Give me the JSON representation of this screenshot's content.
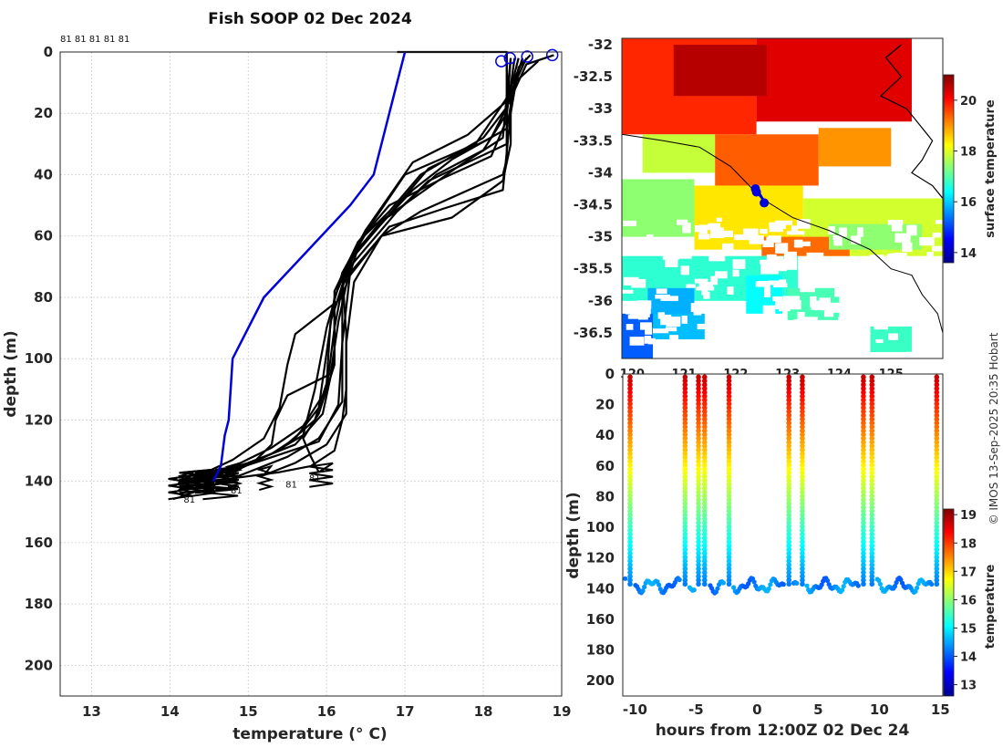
{
  "colors": {
    "profile_line": "#000000",
    "highlight_line": "#0000dd",
    "marker": "#0000dd",
    "coast": "#000000",
    "jet": [
      "#00008f",
      "#0000ff",
      "#007fff",
      "#00ffff",
      "#7fff7f",
      "#ffff00",
      "#ff7f00",
      "#ff0000",
      "#7f0000"
    ]
  },
  "chart_data": [
    {
      "id": "profiles",
      "type": "line",
      "title": "Fish SOOP 02 Dec 2024",
      "xlabel": "temperature (° C)",
      "ylabel": "depth (m)",
      "xlim": [
        12.6,
        19.0
      ],
      "ylim": [
        210,
        0
      ],
      "xticks": [
        13,
        14,
        15,
        16,
        17,
        18,
        19
      ],
      "yticks": [
        0,
        20,
        40,
        60,
        80,
        100,
        120,
        140,
        160,
        180,
        200
      ],
      "grid": true,
      "top_labels": "81 81 81 81 81",
      "bottom_labels": [
        {
          "text": "81",
          "t": 14.25,
          "d": 147
        },
        {
          "text": "81",
          "t": 14.85,
          "d": 144
        },
        {
          "text": "81",
          "t": 15.55,
          "d": 142
        },
        {
          "text": "81",
          "t": 15.85,
          "d": 140
        }
      ],
      "surface_markers": [
        {
          "t": 18.23,
          "d": 3
        },
        {
          "t": 18.34,
          "d": 2
        },
        {
          "t": 18.56,
          "d": 1.5
        },
        {
          "t": 18.88,
          "d": 1
        }
      ],
      "highlight_series": {
        "name": "blue",
        "points": [
          [
            17.0,
            0
          ],
          [
            16.9,
            10
          ],
          [
            16.6,
            40
          ],
          [
            16.3,
            50
          ],
          [
            15.2,
            80
          ],
          [
            14.8,
            100
          ],
          [
            14.75,
            120
          ],
          [
            14.7,
            125
          ],
          [
            14.65,
            135
          ],
          [
            14.55,
            140
          ]
        ]
      },
      "series": [
        {
          "name": "p1",
          "points": [
            [
              16.9,
              0
            ],
            [
              18.3,
              0
            ],
            [
              18.3,
              20
            ],
            [
              18.3,
              35
            ],
            [
              18.25,
              40
            ],
            [
              17.2,
              52
            ],
            [
              16.7,
              60
            ],
            [
              16.35,
              75
            ],
            [
              16.25,
              95
            ],
            [
              16.25,
              110
            ],
            [
              16.2,
              120
            ],
            [
              16.1,
              130
            ],
            [
              15.8,
              135
            ],
            [
              15.4,
              137
            ],
            [
              14.8,
              139
            ],
            [
              14.1,
              141
            ]
          ]
        },
        {
          "name": "p2",
          "points": [
            [
              18.6,
              1
            ],
            [
              18.45,
              5
            ],
            [
              18.35,
              20
            ],
            [
              18.25,
              45
            ],
            [
              17.5,
              51
            ],
            [
              16.8,
              57
            ],
            [
              16.3,
              72
            ],
            [
              16.2,
              95
            ],
            [
              16.15,
              115
            ],
            [
              15.9,
              127
            ],
            [
              15.2,
              133
            ],
            [
              14.6,
              138
            ],
            [
              14.1,
              141
            ]
          ]
        },
        {
          "name": "p3",
          "points": [
            [
              18.9,
              1
            ],
            [
              18.55,
              4
            ],
            [
              18.3,
              18
            ],
            [
              18.0,
              28
            ],
            [
              17.2,
              40
            ],
            [
              16.8,
              52
            ],
            [
              16.4,
              62
            ],
            [
              16.1,
              78
            ],
            [
              16.1,
              100
            ],
            [
              15.95,
              118
            ],
            [
              15.6,
              128
            ],
            [
              15.0,
              134
            ],
            [
              14.3,
              139
            ]
          ]
        },
        {
          "name": "p4",
          "points": [
            [
              18.35,
              2
            ],
            [
              18.3,
              15
            ],
            [
              17.9,
              30
            ],
            [
              17.0,
              40
            ],
            [
              16.6,
              55
            ],
            [
              16.2,
              72
            ],
            [
              16.0,
              90
            ],
            [
              15.85,
              110
            ],
            [
              15.7,
              125
            ],
            [
              15.3,
              131
            ],
            [
              14.8,
              136
            ],
            [
              14.2,
              140
            ]
          ]
        },
        {
          "name": "p5",
          "points": [
            [
              18.5,
              2
            ],
            [
              18.3,
              18
            ],
            [
              18.1,
              28
            ],
            [
              17.3,
              38
            ],
            [
              16.9,
              50
            ],
            [
              16.3,
              68
            ],
            [
              16.05,
              88
            ],
            [
              16.0,
              108
            ],
            [
              15.85,
              120
            ],
            [
              15.4,
              130
            ],
            [
              14.9,
              135
            ],
            [
              14.4,
              140
            ]
          ]
        },
        {
          "name": "p6",
          "points": [
            [
              18.45,
              2
            ],
            [
              18.35,
              12
            ],
            [
              18.35,
              30
            ],
            [
              18.25,
              42
            ],
            [
              17.6,
              54
            ],
            [
              16.7,
              60
            ],
            [
              16.2,
              76
            ],
            [
              16.2,
              98
            ],
            [
              16.2,
              114
            ],
            [
              15.9,
              126
            ],
            [
              15.5,
              132
            ],
            [
              15.0,
              137
            ],
            [
              14.6,
              141
            ]
          ]
        },
        {
          "name": "p7",
          "points": [
            [
              18.55,
              2
            ],
            [
              18.3,
              16
            ],
            [
              17.8,
              27
            ],
            [
              17.1,
              36
            ],
            [
              16.5,
              58
            ],
            [
              16.2,
              72
            ],
            [
              16.25,
              92
            ],
            [
              16.25,
              118
            ],
            [
              16.0,
              128
            ],
            [
              15.6,
              134
            ],
            [
              15.2,
              138
            ]
          ]
        },
        {
          "name": "p8",
          "points": [
            [
              18.4,
              2
            ],
            [
              18.3,
              20
            ],
            [
              18.0,
              32
            ],
            [
              17.4,
              40
            ],
            [
              16.9,
              52
            ],
            [
              16.3,
              70
            ],
            [
              16.15,
              88
            ],
            [
              16.05,
              105
            ],
            [
              15.5,
              112
            ],
            [
              15.35,
              120
            ],
            [
              15.3,
              128
            ],
            [
              15.1,
              133
            ],
            [
              14.7,
              138
            ]
          ]
        },
        {
          "name": "p9",
          "points": [
            [
              18.7,
              3
            ],
            [
              18.4,
              10
            ],
            [
              18.3,
              25
            ],
            [
              17.6,
              35
            ],
            [
              17.1,
              45
            ],
            [
              16.7,
              56
            ],
            [
              16.4,
              64
            ],
            [
              16.2,
              80
            ],
            [
              15.6,
              92
            ],
            [
              15.5,
              102
            ],
            [
              15.4,
              116
            ],
            [
              15.2,
              126
            ],
            [
              14.8,
              133
            ],
            [
              14.3,
              139
            ]
          ]
        },
        {
          "name": "p10",
          "points": [
            [
              18.3,
              2
            ],
            [
              18.3,
              22
            ],
            [
              18.1,
              34
            ],
            [
              17.5,
              41
            ],
            [
              16.8,
              50
            ],
            [
              16.4,
              62
            ],
            [
              16.1,
              80
            ],
            [
              16.0,
              98
            ],
            [
              15.9,
              116
            ],
            [
              15.6,
              126
            ],
            [
              15.3,
              131
            ],
            [
              14.8,
              137
            ]
          ]
        },
        {
          "name": "p11",
          "points": [
            [
              18.5,
              3
            ],
            [
              18.3,
              14
            ],
            [
              18.25,
              28
            ],
            [
              17.7,
              37
            ],
            [
              17.2,
              46
            ],
            [
              16.7,
              55
            ],
            [
              16.35,
              66
            ],
            [
              16.1,
              84
            ],
            [
              16.1,
              102
            ],
            [
              15.9,
              118
            ],
            [
              15.7,
              126
            ],
            [
              15.8,
              132
            ],
            [
              15.9,
              137
            ]
          ]
        },
        {
          "name": "p12",
          "points": [
            [
              18.35,
              2
            ],
            [
              18.3,
              20
            ],
            [
              18.3,
              30
            ],
            [
              17.3,
              42
            ],
            [
              16.9,
              52
            ],
            [
              16.5,
              58
            ],
            [
              16.25,
              70
            ],
            [
              16.1,
              90
            ],
            [
              16.0,
              110
            ],
            [
              15.7,
              122
            ],
            [
              15.3,
              129
            ],
            [
              14.9,
              134
            ],
            [
              14.5,
              139
            ]
          ]
        }
      ]
    },
    {
      "id": "sst_map",
      "type": "heatmap",
      "xlim": [
        119.8,
        126.0
      ],
      "ylim": [
        -36.9,
        -31.9
      ],
      "xticks": [
        120,
        121,
        122,
        123,
        124,
        125
      ],
      "yticks": [
        -32,
        -32.5,
        -33,
        -33.5,
        -34,
        -34.5,
        -35,
        -35.5,
        -36,
        -36.5
      ],
      "ytick_labels": [
        "-32",
        "-32.5",
        "-33",
        "-33.5",
        "-34",
        "-34.5",
        "-35",
        "-35.5",
        "-36",
        "-36.5"
      ],
      "colorbar_label": "surface temperature",
      "colorbar_range": [
        13.6,
        21.0
      ],
      "colorbar_ticks": [
        14,
        16,
        18,
        20
      ],
      "track": [
        [
          122.4,
          -34.25
        ],
        [
          122.55,
          -34.45
        ]
      ],
      "track_markers": [
        [
          122.38,
          -34.25
        ],
        [
          122.4,
          -34.3
        ],
        [
          122.55,
          -34.47
        ]
      ],
      "coastline": [
        [
          125.2,
          -32.0
        ],
        [
          124.9,
          -32.2
        ],
        [
          125.2,
          -32.5
        ],
        [
          124.8,
          -32.8
        ],
        [
          125.3,
          -33.0
        ],
        [
          125.6,
          -33.3
        ],
        [
          125.8,
          -33.5
        ],
        [
          125.6,
          -33.8
        ],
        [
          125.4,
          -34.0
        ],
        [
          125.8,
          -34.2
        ],
        [
          126.0,
          -34.4
        ]
      ],
      "bathymetry": [
        [
          119.8,
          -33.4
        ],
        [
          120.6,
          -33.5
        ],
        [
          121.3,
          -33.6
        ],
        [
          121.9,
          -33.9
        ],
        [
          122.5,
          -34.4
        ],
        [
          123.1,
          -34.7
        ],
        [
          123.8,
          -34.9
        ],
        [
          124.6,
          -35.2
        ],
        [
          125.0,
          -35.5
        ],
        [
          125.4,
          -35.6
        ],
        [
          125.6,
          -35.9
        ],
        [
          125.9,
          -36.2
        ],
        [
          126.0,
          -36.5
        ]
      ],
      "temperature_field": [
        {
          "lon0": 119.8,
          "lon1": 122.4,
          "lat0": -33.4,
          "lat1": -31.9,
          "t": 19.8
        },
        {
          "lon0": 122.4,
          "lon1": 125.4,
          "lat0": -33.2,
          "lat1": -31.9,
          "t": 20.3
        },
        {
          "lon0": 120.8,
          "lon1": 122.6,
          "lat0": -32.8,
          "lat1": -32.0,
          "t": 20.6
        },
        {
          "lon0": 120.2,
          "lon1": 121.6,
          "lat0": -34.0,
          "lat1": -33.4,
          "t": 17.8
        },
        {
          "lon0": 121.6,
          "lon1": 123.6,
          "lat0": -34.2,
          "lat1": -33.4,
          "t": 19.4
        },
        {
          "lon0": 123.6,
          "lon1": 125.0,
          "lat0": -33.9,
          "lat1": -33.3,
          "t": 19.0
        },
        {
          "lon0": 121.2,
          "lon1": 123.3,
          "lat0": -35.2,
          "lat1": -34.2,
          "t": 18.4
        },
        {
          "lon0": 123.3,
          "lon1": 126.0,
          "lat0": -35.3,
          "lat1": -34.4,
          "t": 17.9
        },
        {
          "lon0": 122.5,
          "lon1": 124.2,
          "lat0": -35.3,
          "lat1": -35.0,
          "t": 19.3
        },
        {
          "lon0": 119.8,
          "lon1": 121.2,
          "lat0": -35.0,
          "lat1": -34.1,
          "t": 17.4
        },
        {
          "lon0": 119.8,
          "lon1": 123.2,
          "lat0": -36.0,
          "lat1": -35.3,
          "t": 16.7
        },
        {
          "lon0": 120.3,
          "lon1": 121.2,
          "lat0": -36.4,
          "lat1": -35.8,
          "t": 15.8
        },
        {
          "lon0": 119.8,
          "lon1": 120.4,
          "lat0": -36.9,
          "lat1": -36.2,
          "t": 15.2
        },
        {
          "lon0": 120.4,
          "lon1": 121.4,
          "lat0": -36.6,
          "lat1": -36.2,
          "t": 15.9
        },
        {
          "lon0": 122.2,
          "lon1": 122.9,
          "lat0": -36.2,
          "lat1": -35.6,
          "t": 16.4
        },
        {
          "lon0": 123.0,
          "lon1": 124.0,
          "lat0": -36.3,
          "lat1": -35.8,
          "t": 16.9
        },
        {
          "lon0": 124.6,
          "lon1": 125.4,
          "lat0": -36.8,
          "lat1": -36.4,
          "t": 16.8
        },
        {
          "lon0": 123.8,
          "lon1": 125.6,
          "lat0": -35.2,
          "lat1": -34.8,
          "t": 17.4
        }
      ]
    },
    {
      "id": "depth_time",
      "type": "scatter",
      "xlabel": "hours from 12:00Z 02 Dec 24",
      "ylabel": "depth (m)",
      "xlim": [
        -11,
        15.2
      ],
      "ylim": [
        210,
        0
      ],
      "xticks": [
        -10,
        -5,
        0,
        5,
        10,
        15
      ],
      "yticks": [
        0,
        20,
        40,
        60,
        80,
        100,
        120,
        140,
        160,
        180,
        200
      ],
      "ytick_labels": [
        "0",
        "20",
        "40",
        "60",
        "80",
        "100",
        "120",
        "140",
        "160",
        "180",
        "200"
      ],
      "colorbar_label": "temperature",
      "colorbar_range": [
        12.6,
        19.2
      ],
      "colorbar_ticks": [
        13,
        14,
        15,
        16,
        17,
        18,
        19
      ],
      "casts_hours": [
        -10.4,
        -5.9,
        -4.8,
        -4.3,
        -2.3,
        2.6,
        3.7,
        8.7,
        9.4,
        14.7
      ],
      "bottom_depth_m": 138
    }
  ],
  "watermark": "© IMOS 13-Sep-2025 20:35 Hobart"
}
